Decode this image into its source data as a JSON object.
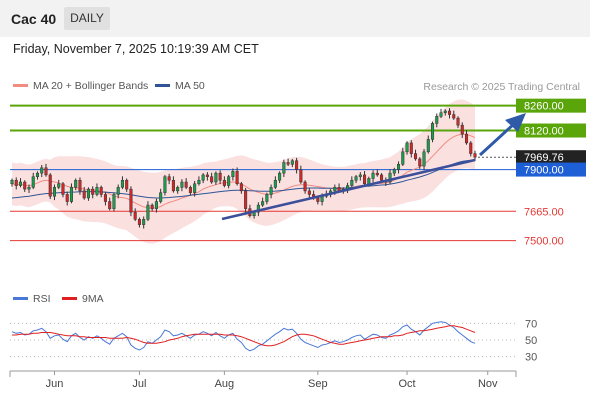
{
  "header": {
    "title": "Cac 40",
    "timeframe": "DAILY"
  },
  "date_text": "Friday, November 7, 2025 10:19:39 AM CET",
  "legend": {
    "ma20_label": "MA 20 + Bollinger Bands",
    "ma50_label": "MA 50",
    "ma20_color": "#f28b82",
    "ma50_color": "#2f5597"
  },
  "credit": "Research © 2025 Trading Central",
  "rsi_legend": {
    "rsi_label": "RSI",
    "ma_label": "9MA",
    "rsi_color": "#4a78d6",
    "ma_color": "#e02020"
  },
  "chart_data": [
    {
      "type": "candlestick",
      "title": "Cac 40",
      "ylim": [
        7250,
        8320
      ],
      "x_labels": [
        "Jun",
        "Jul",
        "Aug",
        "Sep",
        "Oct",
        "Nov"
      ],
      "levels": [
        {
          "value": 8260,
          "label": "8260.00",
          "kind": "resistance",
          "color": "#5aa50a"
        },
        {
          "value": 8120,
          "label": "8120.00",
          "kind": "resistance",
          "color": "#5aa50a"
        },
        {
          "value": 7969.76,
          "label": "7969.76",
          "kind": "current",
          "color": "#222222"
        },
        {
          "value": 7900,
          "label": "7900.00",
          "kind": "pivot",
          "color": "#1f5fd6"
        },
        {
          "value": 7665,
          "label": "7665.00",
          "kind": "support",
          "color": "#e53935"
        },
        {
          "value": 7500,
          "label": "7500.00",
          "kind": "support",
          "color": "#e53935"
        }
      ],
      "closes": [
        7840,
        7810,
        7830,
        7790,
        7800,
        7860,
        7880,
        7910,
        7870,
        7750,
        7800,
        7820,
        7760,
        7720,
        7800,
        7840,
        7780,
        7740,
        7790,
        7760,
        7800,
        7760,
        7720,
        7680,
        7760,
        7800,
        7840,
        7790,
        7660,
        7620,
        7590,
        7620,
        7700,
        7680,
        7720,
        7770,
        7860,
        7840,
        7780,
        7800,
        7830,
        7800,
        7770,
        7820,
        7840,
        7870,
        7860,
        7830,
        7880,
        7840,
        7810,
        7860,
        7890,
        7820,
        7780,
        7680,
        7640,
        7660,
        7700,
        7720,
        7760,
        7800,
        7840,
        7880,
        7940,
        7930,
        7950,
        7900,
        7830,
        7780,
        7760,
        7740,
        7720,
        7750,
        7760,
        7780,
        7800,
        7780,
        7790,
        7810,
        7840,
        7860,
        7870,
        7820,
        7850,
        7880,
        7870,
        7840,
        7830,
        7880,
        7900,
        7930,
        8000,
        8050,
        7990,
        7960,
        7920,
        8000,
        8070,
        8160,
        8200,
        8220,
        8230,
        8210,
        8190,
        8150,
        8100,
        8050,
        7990,
        7970
      ],
      "ma20": [
        7820,
        7815,
        7818,
        7812,
        7808,
        7815,
        7825,
        7835,
        7840,
        7835,
        7830,
        7825,
        7815,
        7805,
        7800,
        7798,
        7795,
        7790,
        7788,
        7785,
        7782,
        7778,
        7772,
        7762,
        7752,
        7745,
        7742,
        7738,
        7725,
        7712,
        7700,
        7690,
        7685,
        7682,
        7685,
        7692,
        7705,
        7715,
        7722,
        7730,
        7740,
        7748,
        7755,
        7765,
        7775,
        7790,
        7800,
        7808,
        7815,
        7822,
        7826,
        7828,
        7830,
        7828,
        7820,
        7805,
        7790,
        7780,
        7772,
        7765,
        7760,
        7762,
        7768,
        7775,
        7785,
        7795,
        7805,
        7812,
        7815,
        7815,
        7812,
        7808,
        7804,
        7800,
        7796,
        7794,
        7792,
        7790,
        7790,
        7795,
        7800,
        7805,
        7810,
        7812,
        7815,
        7818,
        7820,
        7822,
        7825,
        7830,
        7840,
        7852,
        7868,
        7885,
        7895,
        7905,
        7915,
        7930,
        7950,
        7975,
        8000,
        8025,
        8050,
        8070,
        8085,
        8095,
        8100,
        8098,
        8090,
        8080
      ],
      "ma50": [
        7740,
        7742,
        7745,
        7748,
        7750,
        7754,
        7758,
        7762,
        7765,
        7766,
        7768,
        7770,
        7771,
        7772,
        7773,
        7774,
        7775,
        7776,
        7776,
        7776,
        7775,
        7774,
        7773,
        7771,
        7769,
        7767,
        7765,
        7762,
        7758,
        7754,
        7750,
        7746,
        7743,
        7741,
        7740,
        7740,
        7741,
        7743,
        7745,
        7747,
        7749,
        7752,
        7755,
        7758,
        7761,
        7764,
        7767,
        7770,
        7773,
        7776,
        7779,
        7781,
        7783,
        7784,
        7784,
        7783,
        7781,
        7780,
        7779,
        7778,
        7778,
        7778,
        7779,
        7781,
        7783,
        7786,
        7789,
        7792,
        7794,
        7795,
        7796,
        7796,
        7796,
        7795,
        7795,
        7795,
        7795,
        7795,
        7796,
        7797,
        7799,
        7801,
        7803,
        7805,
        7807,
        7809,
        7811,
        7813,
        7815,
        7818,
        7822,
        7827,
        7833,
        7840,
        7846,
        7852,
        7858,
        7866,
        7874,
        7884,
        7894,
        7904,
        7914,
        7924,
        7932,
        7940,
        7946,
        7950,
        7952,
        7954
      ],
      "bb_width": [
        120,
        120,
        120,
        120,
        120,
        120,
        120,
        120,
        120,
        120,
        140,
        150,
        160,
        170,
        175,
        178,
        180,
        182,
        182,
        180,
        178,
        176,
        175,
        174,
        174,
        175,
        178,
        180,
        185,
        190,
        195,
        198,
        200,
        200,
        198,
        195,
        190,
        185,
        180,
        175,
        170,
        165,
        160,
        155,
        150,
        145,
        140,
        135,
        130,
        130,
        132,
        135,
        140,
        150,
        160,
        170,
        175,
        178,
        180,
        180,
        178,
        176,
        174,
        172,
        170,
        168,
        165,
        160,
        155,
        150,
        145,
        140,
        135,
        130,
        128,
        126,
        125,
        125,
        125,
        125,
        125,
        125,
        125,
        125,
        128,
        130,
        132,
        135,
        138,
        140,
        145,
        150,
        160,
        170,
        175,
        180,
        185,
        190,
        195,
        200,
        200,
        200,
        200,
        200,
        200,
        198,
        195,
        190,
        185,
        180
      ]
    },
    {
      "type": "line",
      "title": "RSI",
      "ylim": [
        20,
        80
      ],
      "ticks": [
        70,
        50,
        30
      ],
      "series": [
        {
          "name": "RSI",
          "values": [
            60,
            58,
            59,
            56,
            57,
            61,
            62,
            64,
            60,
            52,
            55,
            56,
            51,
            48,
            55,
            58,
            53,
            50,
            54,
            52,
            55,
            52,
            48,
            45,
            52,
            55,
            58,
            54,
            44,
            40,
            38,
            41,
            48,
            46,
            50,
            54,
            62,
            60,
            55,
            56,
            58,
            55,
            52,
            56,
            57,
            60,
            58,
            55,
            59,
            55,
            52,
            56,
            58,
            51,
            47,
            40,
            37,
            39,
            43,
            45,
            49,
            53,
            57,
            60,
            64,
            62,
            63,
            58,
            51,
            47,
            45,
            43,
            41,
            44,
            45,
            47,
            49,
            47,
            48,
            50,
            53,
            55,
            56,
            51,
            54,
            57,
            56,
            53,
            52,
            56,
            58,
            61,
            66,
            68,
            63,
            60,
            56,
            62,
            66,
            70,
            71,
            72,
            71,
            68,
            65,
            60,
            56,
            52,
            48,
            46
          ]
        },
        {
          "name": "9MA",
          "values": [
            56,
            56,
            57,
            57,
            57,
            58,
            58,
            59,
            59,
            59,
            58,
            57,
            56,
            55,
            55,
            55,
            54,
            54,
            53,
            53,
            53,
            53,
            53,
            52,
            52,
            52,
            52,
            53,
            52,
            51,
            49,
            47,
            46,
            46,
            46,
            47,
            48,
            50,
            51,
            52,
            54,
            55,
            56,
            57,
            57,
            57,
            57,
            57,
            57,
            57,
            56,
            56,
            56,
            55,
            54,
            52,
            50,
            48,
            46,
            44,
            43,
            43,
            44,
            46,
            48,
            51,
            54,
            56,
            57,
            57,
            56,
            55,
            53,
            51,
            49,
            47,
            46,
            45,
            45,
            46,
            47,
            48,
            49,
            50,
            51,
            52,
            53,
            54,
            54,
            54,
            55,
            55,
            56,
            58,
            59,
            60,
            61,
            61,
            62,
            63,
            64,
            65,
            66,
            67,
            67,
            66,
            65,
            63,
            61,
            59
          ]
        }
      ]
    }
  ]
}
